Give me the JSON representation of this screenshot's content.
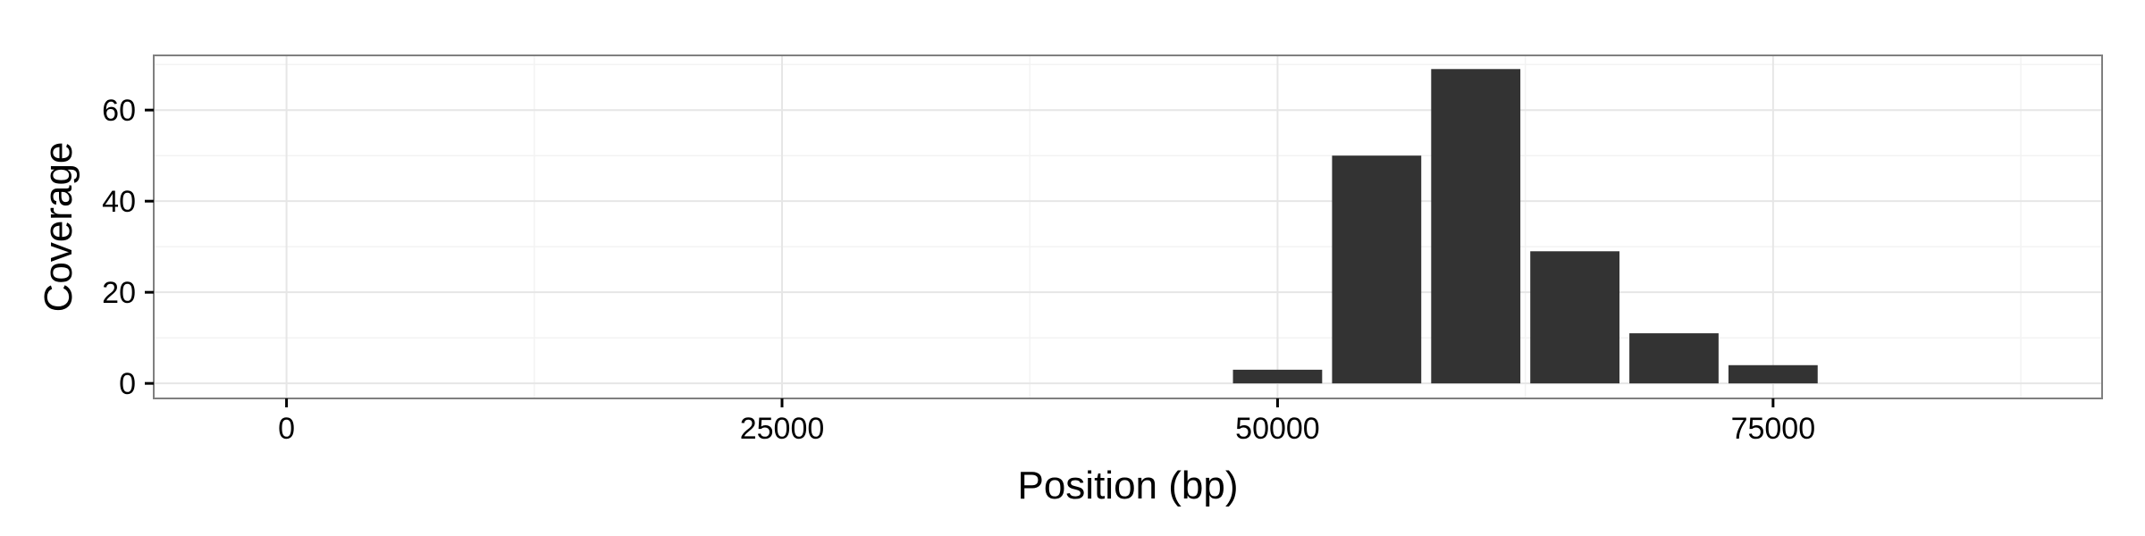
{
  "chart_data": {
    "type": "bar",
    "title": "",
    "xlabel": "Position (bp)",
    "ylabel": "Coverage",
    "xlim": [
      -6700,
      91600
    ],
    "ylim": [
      -3.3,
      72
    ],
    "x_ticks": [
      0,
      25000,
      50000,
      75000
    ],
    "x_tick_labels": [
      "0",
      "25000",
      "50000",
      "75000"
    ],
    "x_minor_ticks": [
      12500,
      37500,
      62500,
      87500
    ],
    "y_ticks": [
      0,
      20,
      40,
      60
    ],
    "y_tick_labels": [
      "0",
      "20",
      "40",
      "60"
    ],
    "y_minor_ticks": [
      10,
      30,
      50,
      70
    ],
    "bar_width": 4500,
    "x": [
      50000,
      55000,
      60000,
      65000,
      70000,
      75000
    ],
    "values": [
      3,
      50,
      69,
      29,
      11,
      4
    ],
    "grid": true,
    "legend": "none",
    "colors": {
      "bar": "#333333",
      "panel_border": "#7f7f7f",
      "grid_major": "#e6e6e6",
      "grid_minor": "#f3f3f3"
    }
  }
}
